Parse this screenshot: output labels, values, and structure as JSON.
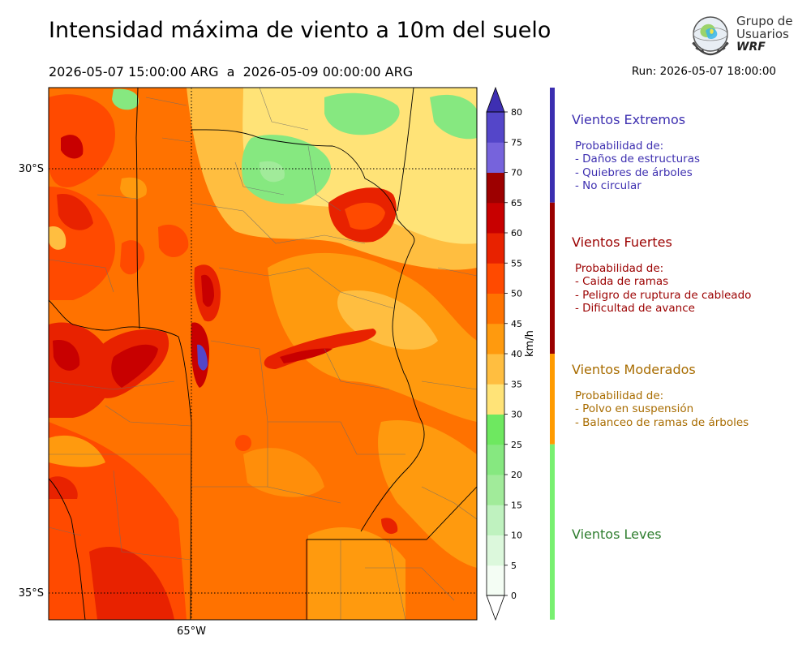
{
  "header": {
    "title": "Intensidad máxima de viento a 10m del suelo",
    "period": "2026-05-07 15:00:00 ARG  a  2026-05-09 00:00:00 ARG",
    "run": "Run: 2026-05-07 18:00:00"
  },
  "logo": {
    "text": "Grupo de\nUsuarios",
    "brand": "WRF"
  },
  "map": {
    "lat_labels": [
      "30°S",
      "35°S"
    ],
    "lon_labels": [
      "65°W"
    ],
    "extent": {
      "lon_min": -66.7,
      "lon_max": -61.7,
      "lat_min": -35.3,
      "lat_max": -29.05
    },
    "gridlines": {
      "lat": [
        -30,
        -35
      ],
      "lon": [
        -65
      ]
    }
  },
  "colorbar": {
    "unit": "km/h",
    "ticks": [
      "0",
      "5",
      "10",
      "15",
      "20",
      "25",
      "30",
      "35",
      "40",
      "45",
      "50",
      "55",
      "60",
      "65",
      "70",
      "75",
      "80"
    ],
    "colors": [
      "#f4fdf4",
      "#dcf8dc",
      "#bff2bf",
      "#a1eb9a",
      "#86e880",
      "#6ee860",
      "#ffe377",
      "#ffbe40",
      "#ff9a0e",
      "#ff7200",
      "#ff4a00",
      "#e82200",
      "#c80000",
      "#9d0000",
      "#7663dc",
      "#5446c9",
      "#3e2fb2"
    ],
    "extend": "both"
  },
  "legend": [
    {
      "title": "Vientos Extremos",
      "color": "#3d2fb0",
      "bar_color": "#3b2eb0",
      "lines": "Probabilidad de:\n- Daños de estructuras\n- Quiebres de árboles\n- No circular"
    },
    {
      "title": "Vientos Fuertes",
      "color": "#9b0000",
      "bar_color": "#9a0000",
      "lines": "Probabilidad de:\n- Caida de ramas\n- Peligro de ruptura de cableado\n- Dificultad de avance"
    },
    {
      "title": "Vientos Moderados",
      "color": "#a86c00",
      "bar_color": "#ff9b00",
      "lines": "Probabilidad de:\n- Polvo en suspensión\n- Balanceo de ramas de árboles"
    },
    {
      "title": "Vientos Leves",
      "color": "#2e7d2e",
      "bar_color": "#78f070",
      "lines": ""
    }
  ]
}
